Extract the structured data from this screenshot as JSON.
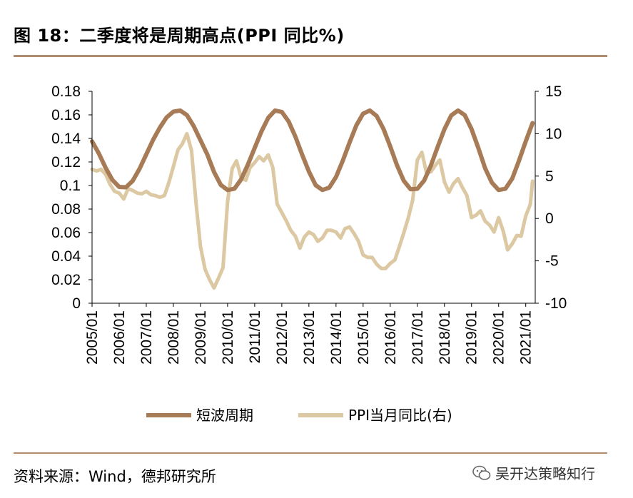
{
  "header": {
    "title": "图 18：二季度将是周期高点(PPI 同比%)"
  },
  "footer": {
    "source": "资料来源：Wind，德邦研究所",
    "watermark": "吴开达策略知行"
  },
  "colors": {
    "short_cycle": "#a87b57",
    "ppi": "#dcc8a3",
    "rule": "#b08d6e",
    "axis": "#000000"
  },
  "chart_data": {
    "type": "line",
    "title": "二季度将是周期高点(PPI 同比%)",
    "x_tick_labels": [
      "2005/01",
      "2006/01",
      "2007/01",
      "2008/01",
      "2009/01",
      "2010/01",
      "2011/01",
      "2012/01",
      "2013/01",
      "2014/01",
      "2015/01",
      "2016/01",
      "2017/01",
      "2018/01",
      "2019/01",
      "2020/01",
      "2021/01"
    ],
    "left_axis": {
      "ylim": [
        0,
        0.18
      ],
      "ticks": [
        "0",
        "0.02",
        "0.04",
        "0.06",
        "0.08",
        "0.1",
        "0.12",
        "0.14",
        "0.16",
        "0.18"
      ]
    },
    "right_axis": {
      "ylim": [
        -10,
        15
      ],
      "ticks": [
        "-10",
        "-5",
        "0",
        "5",
        "10",
        "15"
      ]
    },
    "legend": {
      "placement": "bottom"
    },
    "series": [
      {
        "name": "短波周期",
        "axis": "left",
        "x": [
          2005.0,
          2005.25,
          2005.5,
          2005.75,
          2006.0,
          2006.25,
          2006.5,
          2006.75,
          2007.0,
          2007.25,
          2007.5,
          2007.75,
          2008.0,
          2008.25,
          2008.5,
          2008.75,
          2009.0,
          2009.25,
          2009.5,
          2009.75,
          2010.0,
          2010.25,
          2010.5,
          2010.75,
          2011.0,
          2011.25,
          2011.5,
          2011.75,
          2012.0,
          2012.25,
          2012.5,
          2012.75,
          2013.0,
          2013.25,
          2013.5,
          2013.75,
          2014.0,
          2014.25,
          2014.5,
          2014.75,
          2015.0,
          2015.25,
          2015.5,
          2015.75,
          2016.0,
          2016.25,
          2016.5,
          2016.75,
          2017.0,
          2017.25,
          2017.5,
          2017.75,
          2018.0,
          2018.25,
          2018.5,
          2018.75,
          2019.0,
          2019.25,
          2019.5,
          2019.75,
          2020.0,
          2020.25,
          2020.5,
          2020.75,
          2021.0,
          2021.25
        ],
        "values": [
          0.1375,
          0.1272,
          0.115,
          0.1047,
          0.0988,
          0.0985,
          0.104,
          0.1142,
          0.1265,
          0.1387,
          0.1492,
          0.1578,
          0.1627,
          0.1637,
          0.1598,
          0.1505,
          0.1385,
          0.1265,
          0.1115,
          0.1005,
          0.0962,
          0.0972,
          0.1052,
          0.1178,
          0.132,
          0.146,
          0.1575,
          0.1637,
          0.1625,
          0.1545,
          0.1415,
          0.1262,
          0.1118,
          0.1003,
          0.0962,
          0.0982,
          0.1072,
          0.121,
          0.1365,
          0.151,
          0.161,
          0.1637,
          0.159,
          0.1482,
          0.1332,
          0.1172,
          0.104,
          0.0968,
          0.0972,
          0.1042,
          0.117,
          0.1328,
          0.1478,
          0.1595,
          0.1637,
          0.1598,
          0.148,
          0.132,
          0.1148,
          0.1025,
          0.0962,
          0.0972,
          0.1058,
          0.121,
          0.1375,
          0.153
        ]
      },
      {
        "name": "PPI当月同比(右)",
        "axis": "right",
        "x": [
          2005.0,
          2005.17,
          2005.33,
          2005.5,
          2005.67,
          2005.83,
          2006.0,
          2006.17,
          2006.33,
          2006.5,
          2006.67,
          2006.83,
          2007.0,
          2007.17,
          2007.33,
          2007.5,
          2007.67,
          2007.83,
          2008.0,
          2008.17,
          2008.33,
          2008.5,
          2008.67,
          2008.83,
          2009.0,
          2009.17,
          2009.33,
          2009.5,
          2009.67,
          2009.83,
          2010.0,
          2010.17,
          2010.33,
          2010.5,
          2010.67,
          2010.83,
          2011.0,
          2011.17,
          2011.33,
          2011.5,
          2011.67,
          2011.83,
          2012.0,
          2012.17,
          2012.33,
          2012.5,
          2012.67,
          2012.83,
          2013.0,
          2013.17,
          2013.33,
          2013.5,
          2013.67,
          2013.83,
          2014.0,
          2014.17,
          2014.33,
          2014.5,
          2014.67,
          2014.83,
          2015.0,
          2015.17,
          2015.33,
          2015.5,
          2015.67,
          2015.83,
          2016.0,
          2016.17,
          2016.33,
          2016.5,
          2016.67,
          2016.83,
          2017.0,
          2017.17,
          2017.33,
          2017.5,
          2017.67,
          2017.83,
          2018.0,
          2018.17,
          2018.33,
          2018.5,
          2018.67,
          2018.83,
          2019.0,
          2019.17,
          2019.33,
          2019.5,
          2019.67,
          2019.83,
          2020.0,
          2020.17,
          2020.33,
          2020.5,
          2020.67,
          2020.83,
          2021.0,
          2021.17,
          2021.25
        ],
        "values": [
          5.8,
          5.6,
          5.8,
          5.2,
          4.0,
          3.2,
          3.0,
          2.3,
          3.5,
          3.3,
          3.0,
          2.9,
          3.2,
          2.8,
          2.7,
          2.5,
          2.7,
          4.2,
          6.1,
          8.1,
          8.8,
          10.0,
          8.0,
          2.0,
          -3.3,
          -6.0,
          -7.2,
          -8.2,
          -7.0,
          -5.8,
          2.0,
          5.9,
          6.8,
          4.8,
          4.5,
          6.0,
          6.6,
          7.3,
          6.8,
          7.5,
          6.0,
          1.7,
          0.7,
          -0.3,
          -1.4,
          -2.1,
          -3.5,
          -2.2,
          -1.6,
          -1.9,
          -2.7,
          -2.3,
          -1.4,
          -1.4,
          -1.6,
          -2.3,
          -1.2,
          -1.0,
          -1.8,
          -2.7,
          -4.3,
          -4.6,
          -4.6,
          -5.4,
          -5.9,
          -5.9,
          -5.3,
          -4.9,
          -3.4,
          -1.7,
          0.1,
          2.2,
          6.9,
          7.8,
          5.5,
          5.5,
          6.3,
          6.9,
          4.3,
          3.1,
          4.1,
          4.7,
          3.6,
          2.7,
          0.1,
          0.4,
          0.9,
          -0.3,
          -0.8,
          -1.6,
          0.1,
          -1.5,
          -3.7,
          -3.0,
          -2.0,
          -2.1,
          0.3,
          1.7,
          4.4
        ]
      }
    ]
  }
}
